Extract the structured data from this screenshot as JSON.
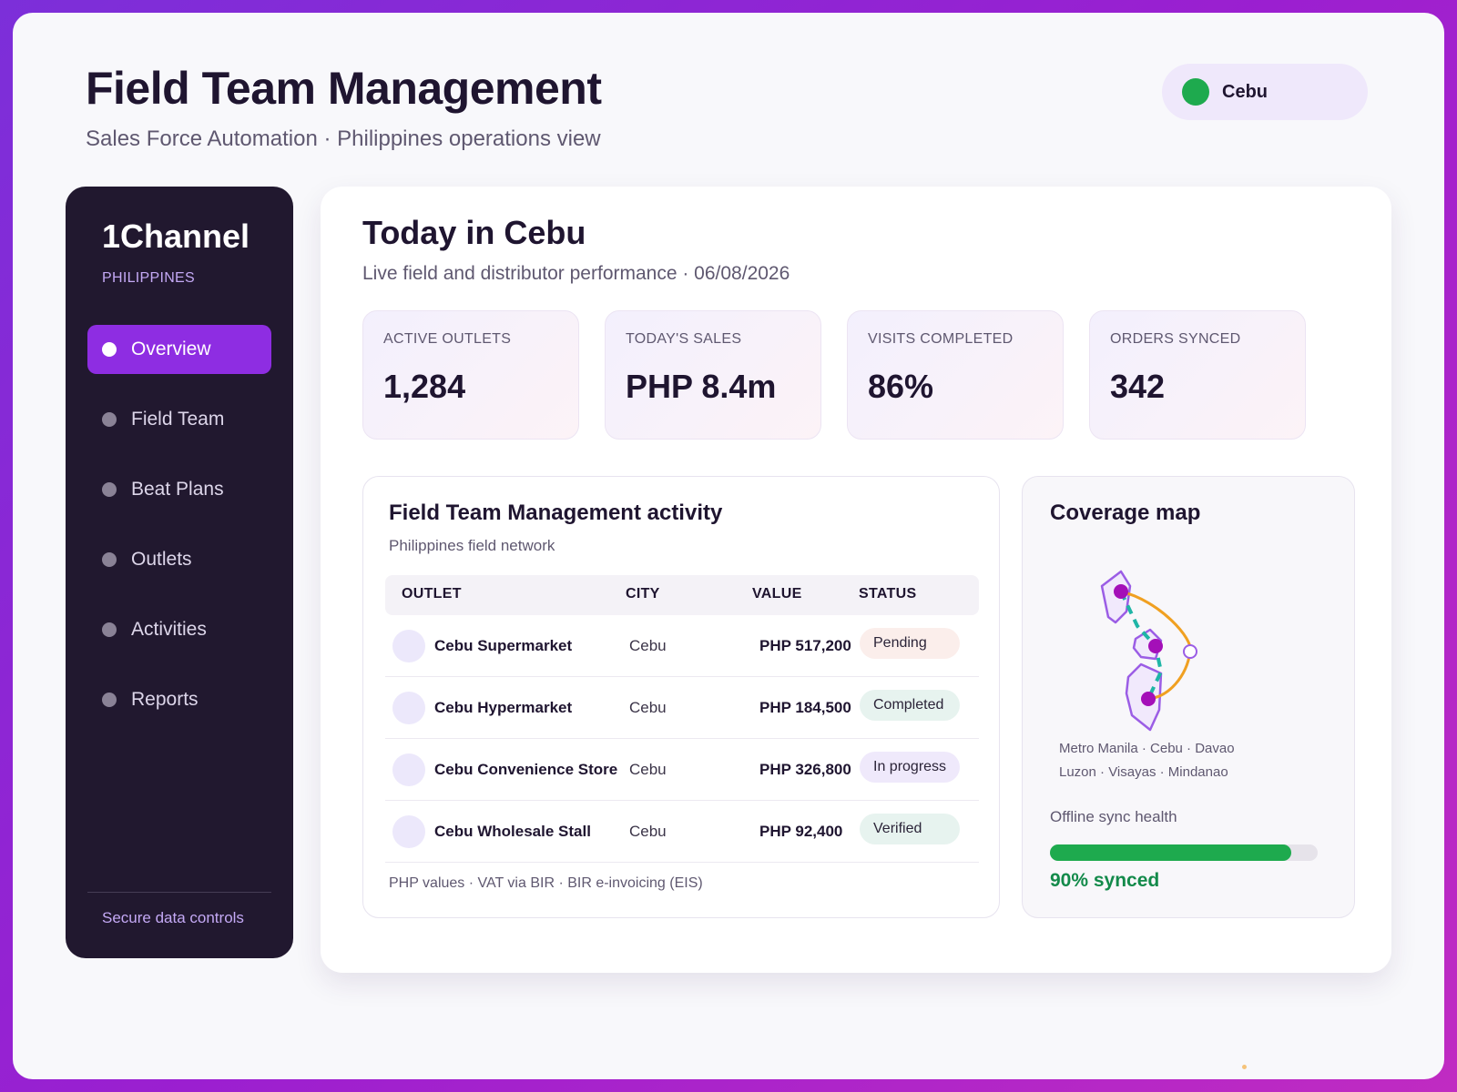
{
  "header": {
    "title": "Field Team Management",
    "subtitle": "Sales Force Automation · Philippines operations view",
    "region": "Cebu"
  },
  "sidebar": {
    "brand": "1Channel",
    "country": "PHILIPPINES",
    "items": [
      {
        "label": "Overview",
        "active": true
      },
      {
        "label": "Field Team",
        "active": false
      },
      {
        "label": "Beat Plans",
        "active": false
      },
      {
        "label": "Outlets",
        "active": false
      },
      {
        "label": "Activities",
        "active": false
      },
      {
        "label": "Reports",
        "active": false
      }
    ],
    "footer": "Secure data controls"
  },
  "main": {
    "title": "Today in Cebu",
    "subtitle": "Live field and distributor performance · 06/08/2026",
    "kpis": [
      {
        "label": "ACTIVE OUTLETS",
        "value": "1,284"
      },
      {
        "label": "TODAY'S SALES",
        "value": "PHP 8.4m"
      },
      {
        "label": "VISITS COMPLETED",
        "value": "86%"
      },
      {
        "label": "ORDERS SYNCED",
        "value": "342"
      }
    ]
  },
  "activity": {
    "title": "Field Team Management activity",
    "subtitle": "Philippines field network",
    "columns": [
      "OUTLET",
      "CITY",
      "VALUE",
      "STATUS"
    ],
    "rows": [
      {
        "outlet": "Cebu Supermarket",
        "city": "Cebu",
        "value": "PHP 517,200",
        "status": "Pending"
      },
      {
        "outlet": "Cebu Hypermarket",
        "city": "Cebu",
        "value": "PHP 184,500",
        "status": "Completed"
      },
      {
        "outlet": "Cebu Convenience Store",
        "city": "Cebu",
        "value": "PHP 326,800",
        "status": "In progress"
      },
      {
        "outlet": "Cebu Wholesale Stall",
        "city": "Cebu",
        "value": "PHP 92,400",
        "status": "Verified"
      }
    ],
    "footnote": "PHP values · VAT via BIR · BIR e-invoicing (EIS)"
  },
  "coverage": {
    "title": "Coverage map",
    "cities": "Metro Manila · Cebu · Davao",
    "regions": "Luzon · Visayas · Mindanao",
    "sync_label": "Offline sync health",
    "sync_fraction": 0.9,
    "sync_text": "90% synced"
  },
  "icons": {
    "nav_dot": "bullet-icon",
    "region_dot": "status-dot-icon",
    "map": "island-map-icon"
  },
  "colors": {
    "accent": "#8e2de2",
    "sidebar_bg": "#21182f",
    "success": "#1eaa4e",
    "map_outline": "#9b5de5",
    "map_pin": "#a40fb8",
    "route_dashed": "#1fb5a6",
    "route_arc": "#f0a021"
  }
}
